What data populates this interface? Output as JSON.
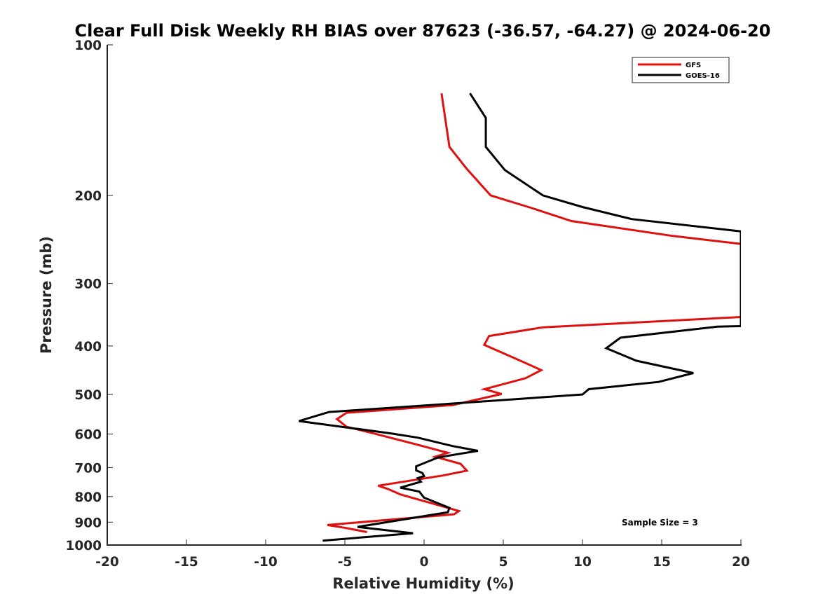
{
  "chart_data": {
    "type": "line",
    "orientation": "vertical-profile",
    "title": "Clear Full Disk Weekly RH BIAS over 87623 (-36.57, -64.27) @ 2024-06-20",
    "xlabel": "Relative Humidity (%)",
    "ylabel": "Pressure (mb)",
    "xlim": [
      -20,
      20
    ],
    "ylim": [
      100,
      1000
    ],
    "y_scale": "log",
    "y_reversed": true,
    "grid": false,
    "legend_position": "top-right",
    "x_ticks": [
      "-20",
      "-15",
      "-10",
      "-5",
      "0",
      "5",
      "10",
      "15",
      "20"
    ],
    "x_tick_values": [
      -20,
      -15,
      -10,
      -5,
      0,
      5,
      10,
      15,
      20
    ],
    "y_ticks": [
      "100",
      "200",
      "300",
      "400",
      "500",
      "600",
      "700",
      "800",
      "900",
      "1000"
    ],
    "y_tick_values": [
      100,
      200,
      300,
      400,
      500,
      600,
      700,
      800,
      900,
      1000
    ],
    "annotation": "Sample Size = 3",
    "series": [
      {
        "name": "GFS",
        "color": "#e01010",
        "points": [
          [
            1.1,
            125
          ],
          [
            1.6,
            160
          ],
          [
            2.7,
            177
          ],
          [
            4.2,
            200
          ],
          [
            6.8,
            212
          ],
          [
            9.3,
            225
          ],
          [
            15.7,
            241
          ],
          [
            20,
            250
          ],
          [
            20,
            350
          ],
          [
            7.5,
            367
          ],
          [
            4.1,
            382
          ],
          [
            3.8,
            398
          ],
          [
            6.0,
            427
          ],
          [
            7.4,
            447
          ],
          [
            6.4,
            464
          ],
          [
            3.8,
            488
          ],
          [
            4.9,
            499
          ],
          [
            1.8,
            525
          ],
          [
            -4.9,
            544
          ],
          [
            -5.5,
            560
          ],
          [
            -4.9,
            580
          ],
          [
            -3.2,
            598
          ],
          [
            -0.6,
            628
          ],
          [
            1.5,
            654
          ],
          [
            0.7,
            666
          ],
          [
            2.3,
            688
          ],
          [
            2.7,
            710
          ],
          [
            1.2,
            726
          ],
          [
            -2.9,
            761
          ],
          [
            -2.3,
            772
          ],
          [
            -1.5,
            792
          ],
          [
            2.2,
            855
          ],
          [
            1.9,
            868
          ],
          [
            -6.1,
            912
          ],
          [
            -4.9,
            925
          ],
          [
            -3.6,
            942
          ]
        ]
      },
      {
        "name": "GOES-16",
        "color": "#000000",
        "points": [
          [
            2.9,
            125
          ],
          [
            3.9,
            140
          ],
          [
            3.9,
            160
          ],
          [
            5.1,
            178
          ],
          [
            7.5,
            200
          ],
          [
            10.0,
            211
          ],
          [
            13.1,
            223
          ],
          [
            20,
            236
          ],
          [
            20,
            365
          ],
          [
            18.5,
            366
          ],
          [
            12.4,
            385
          ],
          [
            11.5,
            404
          ],
          [
            13.4,
            428
          ],
          [
            17.0,
            453
          ],
          [
            14.8,
            472
          ],
          [
            10.4,
            488
          ],
          [
            10.0,
            500
          ],
          [
            1.2,
            523
          ],
          [
            -6.0,
            542
          ],
          [
            -7.9,
            565
          ],
          [
            -2.1,
            598
          ],
          [
            -0.4,
            610
          ],
          [
            1.8,
            634
          ],
          [
            3.4,
            648
          ],
          [
            0.9,
            668
          ],
          [
            -0.5,
            696
          ],
          [
            -0.5,
            709
          ],
          [
            -0.1,
            718
          ],
          [
            0.0,
            728
          ],
          [
            -0.4,
            735
          ],
          [
            -0.2,
            747
          ],
          [
            -1.5,
            768
          ],
          [
            -0.3,
            782
          ],
          [
            0.0,
            804
          ],
          [
            1.6,
            843
          ],
          [
            1.5,
            860
          ],
          [
            -4.2,
            920
          ],
          [
            -2.9,
            930
          ],
          [
            -0.7,
            947
          ],
          [
            -6.4,
            980
          ]
        ]
      }
    ]
  }
}
